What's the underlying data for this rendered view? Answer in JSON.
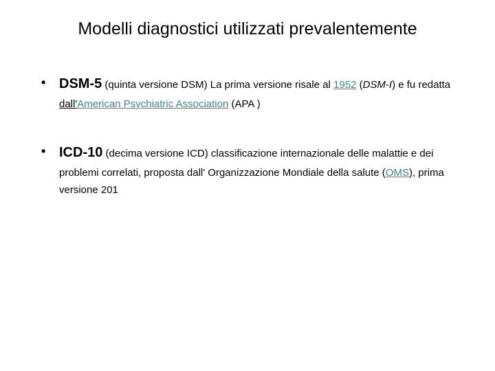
{
  "title": "Modelli diagnostici utilizzati prevalentemente",
  "items": [
    {
      "head": "DSM-5",
      "after_head": " (quinta versione DSM)  La prima versione risale al ",
      "link1": "1952",
      "mid1": " (",
      "italic1": "DSM-I",
      "mid2": ") e fu redatta ",
      "dall": "dall'",
      "link2": "American Psychiatric Association",
      "tail": " (APA )"
    },
    {
      "head": "ICD-10",
      "after_head": " (decima versione ICD) classificazione internazionale delle malattie e dei problemi correlati, proposta dall' Organizzazione Mondiale della salute (",
      "link1": "OMS",
      "tail": "),  prima versione 201"
    }
  ],
  "colors": {
    "link": "#3b8686",
    "text": "#000000",
    "background": "#ffffff"
  }
}
